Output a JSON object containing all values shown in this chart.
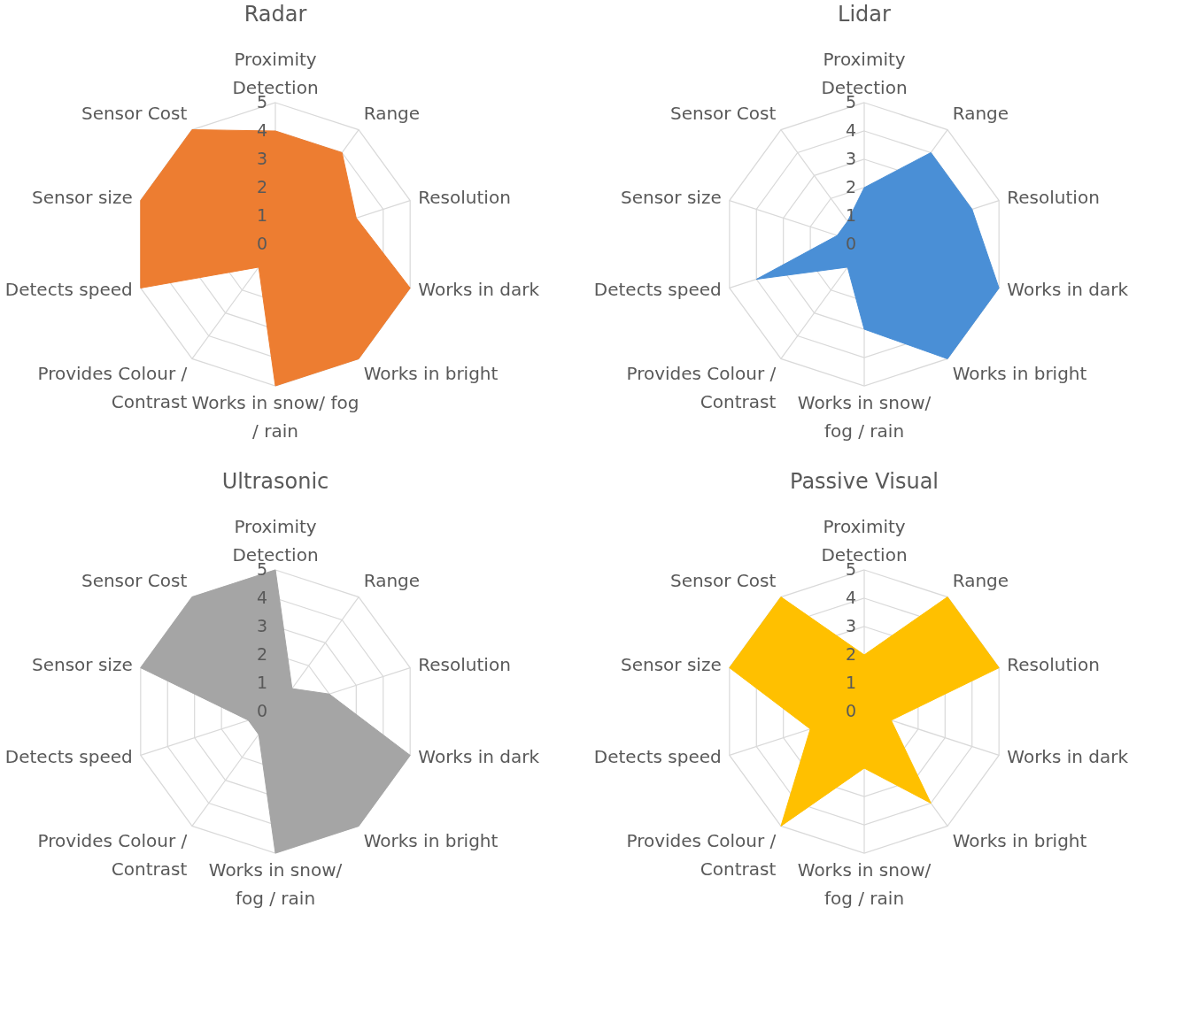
{
  "chart_data": [
    {
      "type": "radar",
      "title": "Radar",
      "categories": [
        "Proximity\nDetection",
        "Range",
        "Resolution",
        "Works in dark",
        "Works in bright",
        "Works in snow/ fog\n/ rain",
        "Provides Colour /\nContrast",
        "Detects speed",
        "Sensor size",
        "Sensor Cost"
      ],
      "series": [
        {
          "color": "#ed7d31",
          "values": [
            4,
            4,
            3,
            5,
            5,
            5,
            1,
            5,
            5,
            5
          ]
        }
      ],
      "ylim": [
        0,
        5
      ],
      "yticks": [
        0,
        1,
        2,
        3,
        4,
        5
      ],
      "grid": true
    },
    {
      "type": "radar",
      "title": "Lidar",
      "categories": [
        "Proximity\nDetection",
        "Range",
        "Resolution",
        "Works in dark",
        "Works in bright",
        "Works in snow/\nfog / rain",
        "Provides Colour /\nContrast",
        "Detects speed",
        "Sensor size",
        "Sensor Cost"
      ],
      "series": [
        {
          "color": "#4a8fd6",
          "values": [
            2,
            4,
            4,
            5,
            5,
            3,
            1,
            4,
            1,
            1
          ]
        }
      ],
      "ylim": [
        0,
        5
      ],
      "yticks": [
        0,
        1,
        2,
        3,
        4,
        5
      ],
      "grid": true
    },
    {
      "type": "radar",
      "title": "Ultrasonic",
      "categories": [
        "Proximity\nDetection",
        "Range",
        "Resolution",
        "Works in dark",
        "Works in bright",
        "Works in snow/\nfog / rain",
        "Provides Colour /\nContrast",
        "Detects speed",
        "Sensor size",
        "Sensor Cost"
      ],
      "series": [
        {
          "color": "#a5a5a5",
          "values": [
            5,
            1,
            2,
            5,
            5,
            5,
            1,
            1,
            5,
            5
          ]
        }
      ],
      "ylim": [
        0,
        5
      ],
      "yticks": [
        0,
        1,
        2,
        3,
        4,
        5
      ],
      "grid": true
    },
    {
      "type": "radar",
      "title": "Passive Visual",
      "categories": [
        "Proximity\nDetection",
        "Range",
        "Resolution",
        "Works in dark",
        "Works in bright",
        "Works in snow/\nfog / rain",
        "Provides Colour /\nContrast",
        "Detects speed",
        "Sensor size",
        "Sensor Cost"
      ],
      "series": [
        {
          "color": "#ffc000",
          "values": [
            2,
            5,
            5,
            1,
            4,
            2,
            5,
            2,
            5,
            5
          ]
        }
      ],
      "ylim": [
        0,
        5
      ],
      "yticks": [
        0,
        1,
        2,
        3,
        4,
        5
      ],
      "grid": true
    }
  ]
}
